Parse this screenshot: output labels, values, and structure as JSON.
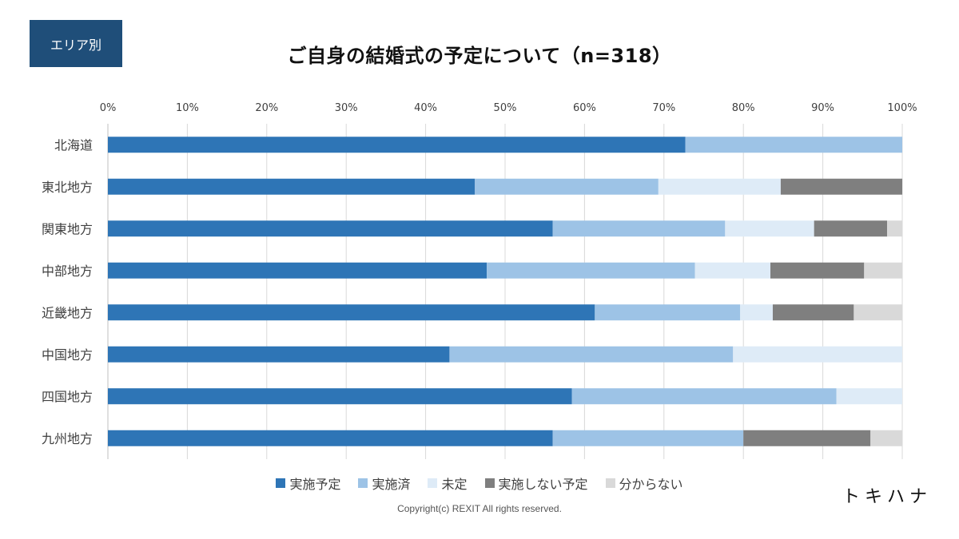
{
  "badge": "エリア別",
  "title": "ご自身の結婚式の予定について（n=318）",
  "copyright": "Copyright(c) REXIT All rights reserved.",
  "logo": "トキハナ",
  "colors": {
    "実施予定": "#2e75b6",
    "実施済": "#9dc3e6",
    "未定": "#deebf7",
    "実施しない予定": "#7f7f7f",
    "分からない": "#d9d9d9",
    "grid": "#d9d9d9",
    "axis": "#bfbfbf"
  },
  "chart_data": {
    "type": "bar",
    "orientation": "horizontal",
    "stacked": true,
    "percent_stacked": true,
    "x_ticks": [
      "0%",
      "10%",
      "20%",
      "30%",
      "40%",
      "50%",
      "60%",
      "70%",
      "80%",
      "90%",
      "100%"
    ],
    "xlim": [
      0,
      100
    ],
    "categories": [
      "北海道",
      "東北地方",
      "関東地方",
      "中部地方",
      "近畿地方",
      "中国地方",
      "四国地方",
      "九州地方"
    ],
    "series": [
      {
        "name": "実施予定",
        "values": [
          72.7,
          46.2,
          56.0,
          47.7,
          61.3,
          43.0,
          58.4,
          56.0
        ]
      },
      {
        "name": "実施済",
        "values": [
          27.3,
          23.1,
          21.7,
          26.2,
          18.3,
          35.7,
          33.3,
          24.0
        ]
      },
      {
        "name": "未定",
        "values": [
          0,
          15.4,
          11.2,
          9.5,
          4.1,
          21.3,
          8.3,
          0
        ]
      },
      {
        "name": "実施しない予定",
        "values": [
          0,
          15.3,
          9.2,
          11.8,
          10.2,
          0,
          0,
          16.0
        ]
      },
      {
        "name": "分からない",
        "values": [
          0,
          0,
          1.9,
          4.8,
          6.1,
          0,
          0,
          4.0
        ]
      }
    ],
    "grid": true,
    "legend_position": "bottom"
  }
}
